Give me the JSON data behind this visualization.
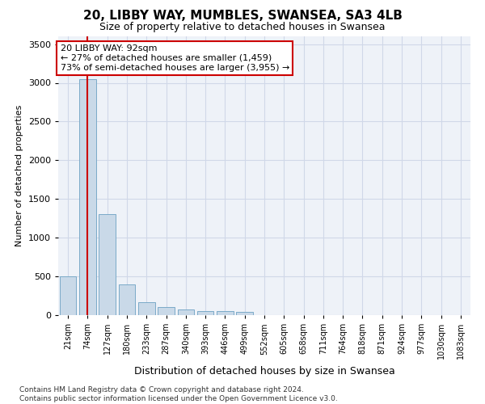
{
  "title1": "20, LIBBY WAY, MUMBLES, SWANSEA, SA3 4LB",
  "title2": "Size of property relative to detached houses in Swansea",
  "xlabel": "Distribution of detached houses by size in Swansea",
  "ylabel": "Number of detached properties",
  "footnote": "Contains HM Land Registry data © Crown copyright and database right 2024.\nContains public sector information licensed under the Open Government Licence v3.0.",
  "categories": [
    "21sqm",
    "74sqm",
    "127sqm",
    "180sqm",
    "233sqm",
    "287sqm",
    "340sqm",
    "393sqm",
    "446sqm",
    "499sqm",
    "552sqm",
    "605sqm",
    "658sqm",
    "711sqm",
    "764sqm",
    "818sqm",
    "871sqm",
    "924sqm",
    "977sqm",
    "1030sqm",
    "1083sqm"
  ],
  "values": [
    500,
    3050,
    1300,
    400,
    170,
    100,
    70,
    55,
    50,
    40,
    5,
    2,
    1,
    0,
    0,
    0,
    0,
    0,
    0,
    0,
    0
  ],
  "bar_color": "#c9d9e8",
  "bar_edge_color": "#7aaac8",
  "grid_color": "#d0d8e8",
  "background_color": "#eef2f8",
  "annotation_line1": "20 LIBBY WAY: 92sqm",
  "annotation_line2": "← 27% of detached houses are smaller (1,459)",
  "annotation_line3": "73% of semi-detached houses are larger (3,955) →",
  "annotation_box_color": "#ffffff",
  "annotation_border_color": "#cc0000",
  "vline_color": "#cc0000",
  "vline_x": 1.0,
  "ylim": [
    0,
    3600
  ],
  "yticks": [
    0,
    500,
    1000,
    1500,
    2000,
    2500,
    3000,
    3500
  ],
  "title1_fontsize": 11,
  "title2_fontsize": 9,
  "ylabel_fontsize": 8,
  "xlabel_fontsize": 9,
  "tick_fontsize": 8,
  "xtick_fontsize": 7,
  "footnote_fontsize": 6.5
}
